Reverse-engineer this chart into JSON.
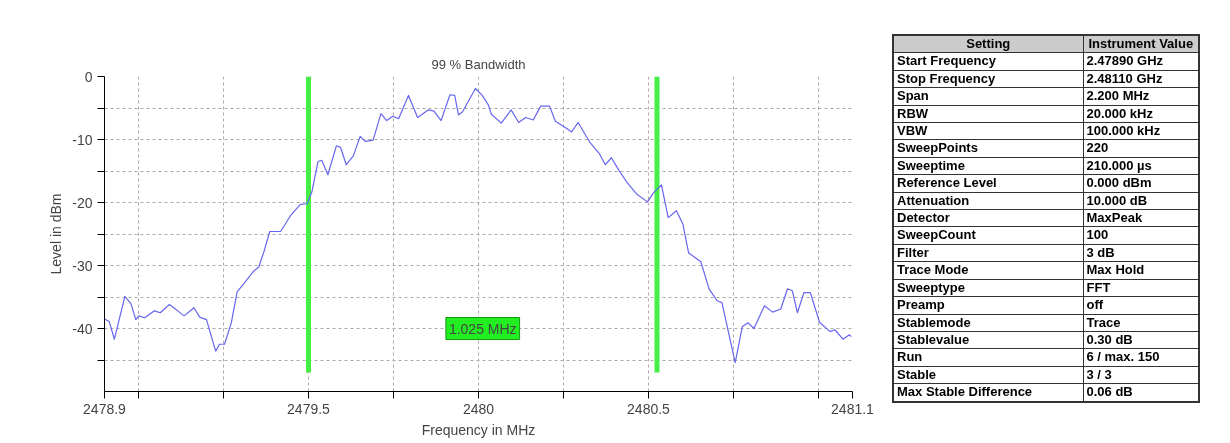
{
  "chart_data": [
    {
      "type": "line",
      "title": "99 % Bandwidth",
      "xlabel": "Frequency in MHz",
      "ylabel": "Level in dBm",
      "xlim": [
        2478.9,
        2481.1
      ],
      "ylim": [
        -50,
        0
      ],
      "xticks": [
        2478.9,
        {
          "value": 2479,
          "label": null
        },
        {
          "value": 2479.25,
          "label": null
        },
        2479.5,
        {
          "value": 2479.75,
          "label": null
        },
        2480,
        {
          "value": 2480.25,
          "label": null
        },
        2480.5,
        {
          "value": 2480.75,
          "label": null
        },
        {
          "value": 2481,
          "label": null
        },
        2481.1
      ],
      "yticks": [
        0,
        {
          "value": -5,
          "label": null
        },
        -10,
        {
          "value": -15,
          "label": null
        },
        -20,
        {
          "value": -25,
          "label": null
        },
        -30,
        {
          "value": -35,
          "label": null
        },
        -40,
        {
          "value": -45,
          "label": null
        }
      ],
      "grid": true,
      "line_style": "solid",
      "marker": "none",
      "series": [
        {
          "color": "#6666ee",
          "x": [
            2478.9,
            2478.914,
            2478.929,
            2478.96,
            2478.978,
            2478.992,
            2479.001,
            2479.018,
            2479.047,
            2479.064,
            2479.091,
            2479.111,
            2479.134,
            2479.163,
            2479.18,
            2479.2,
            2479.227,
            2479.238,
            2479.253,
            2479.273,
            2479.29,
            2479.308,
            2479.337,
            2479.354,
            2479.369,
            2479.386,
            2479.418,
            2479.447,
            2479.476,
            2479.496,
            2479.51,
            2479.528,
            2479.539,
            2479.557,
            2479.582,
            2479.594,
            2479.611,
            2479.632,
            2479.652,
            2479.667,
            2479.69,
            2479.713,
            2479.73,
            2479.748,
            2479.765,
            2479.794,
            2479.821,
            2479.852,
            2479.869,
            2479.89,
            2479.916,
            2479.93,
            2479.941,
            2479.953,
            2479.991,
            2480.011,
            2480.029,
            2480.038,
            2480.067,
            2480.096,
            2480.118,
            2480.139,
            2480.161,
            2480.183,
            2480.209,
            2480.226,
            2480.253,
            2480.274,
            2480.293,
            2480.327,
            2480.356,
            2480.373,
            2480.391,
            2480.413,
            2480.438,
            2480.466,
            2480.497,
            2480.514,
            2480.538,
            2480.558,
            2480.582,
            2480.601,
            2480.618,
            2480.654,
            2480.678,
            2480.702,
            2480.716,
            2480.755,
            2480.776,
            2480.793,
            2480.81,
            2480.841,
            2480.865,
            2480.889,
            2480.909,
            2480.923,
            2480.938,
            2480.957,
            2480.976,
            2481.003,
            2481.034,
            2481.048,
            2481.072,
            2481.091,
            2481.096
          ],
          "values": [
            -38.5,
            -38.9,
            -41.7,
            -34.9,
            -36.1,
            -38.6,
            -38,
            -38.3,
            -37.2,
            -37.5,
            -36.2,
            -37,
            -38,
            -36.7,
            -38.2,
            -38.6,
            -43.6,
            -42.5,
            -42.5,
            -39.1,
            -34.2,
            -33,
            -31,
            -30.2,
            -27.8,
            -24.6,
            -24.6,
            -22.1,
            -20.3,
            -20.2,
            -18.3,
            -13.5,
            -13.3,
            -15.6,
            -11,
            -11.2,
            -14,
            -12.6,
            -9.5,
            -10.3,
            -10.1,
            -5.9,
            -7,
            -6.3,
            -6.7,
            -3,
            -6.5,
            -5.3,
            -5.5,
            -7,
            -2.9,
            -3,
            -6.1,
            -5.6,
            -1.9,
            -3,
            -4.5,
            -6,
            -7.4,
            -5.3,
            -7.3,
            -6.5,
            -6.9,
            -4.7,
            -4.7,
            -7.1,
            -8,
            -8.8,
            -7.3,
            -10.4,
            -12.3,
            -14,
            -12.9,
            -14.9,
            -16.9,
            -18.7,
            -19.9,
            -18.5,
            -17.2,
            -22.4,
            -21.3,
            -23.4,
            -28,
            -29.4,
            -33.7,
            -35.6,
            -35.9,
            -45.4,
            -39.7,
            -39.1,
            -40,
            -36.4,
            -37.4,
            -36.9,
            -33.7,
            -34,
            -37.5,
            -34.3,
            -34.3,
            -39,
            -40.5,
            -40.2,
            -41.7,
            -41,
            -41.3
          ]
        }
      ],
      "ref_lines": [
        {
          "axis": "x",
          "value": 2479.5,
          "color": "#44ee44"
        },
        {
          "axis": "x",
          "value": 2480.525,
          "color": "#44ee44"
        }
      ],
      "annotations": [
        "1.025 MHz"
      ]
    },
    {
      "type": "other",
      "annotations": [
        "Setting",
        "Instrument Value",
        "Start Frequency",
        "2.47890 GHz",
        "Stop Frequency",
        "2.48110 GHz",
        "Span",
        "2.200 MHz",
        "RBW",
        "20.000 kHz",
        "VBW",
        "100.000 kHz",
        "SweepPoints",
        "220",
        "Sweeptime",
        "210.000 µs",
        "Reference Level",
        "0.000 dBm",
        "Attenuation",
        "10.000 dB",
        "Detector",
        "MaxPeak",
        "SweepCount",
        "100",
        "Filter",
        "3 dB",
        "Trace Mode",
        "Max Hold",
        "Sweeptype",
        "FFT",
        "Preamp",
        "off",
        "Stablemode",
        "Trace",
        "Stablevalue",
        "0.30 dB",
        "Run",
        "6 / max. 150",
        "Stable",
        "3 / 3",
        "Max Stable Difference",
        "0.06 dB"
      ]
    }
  ]
}
